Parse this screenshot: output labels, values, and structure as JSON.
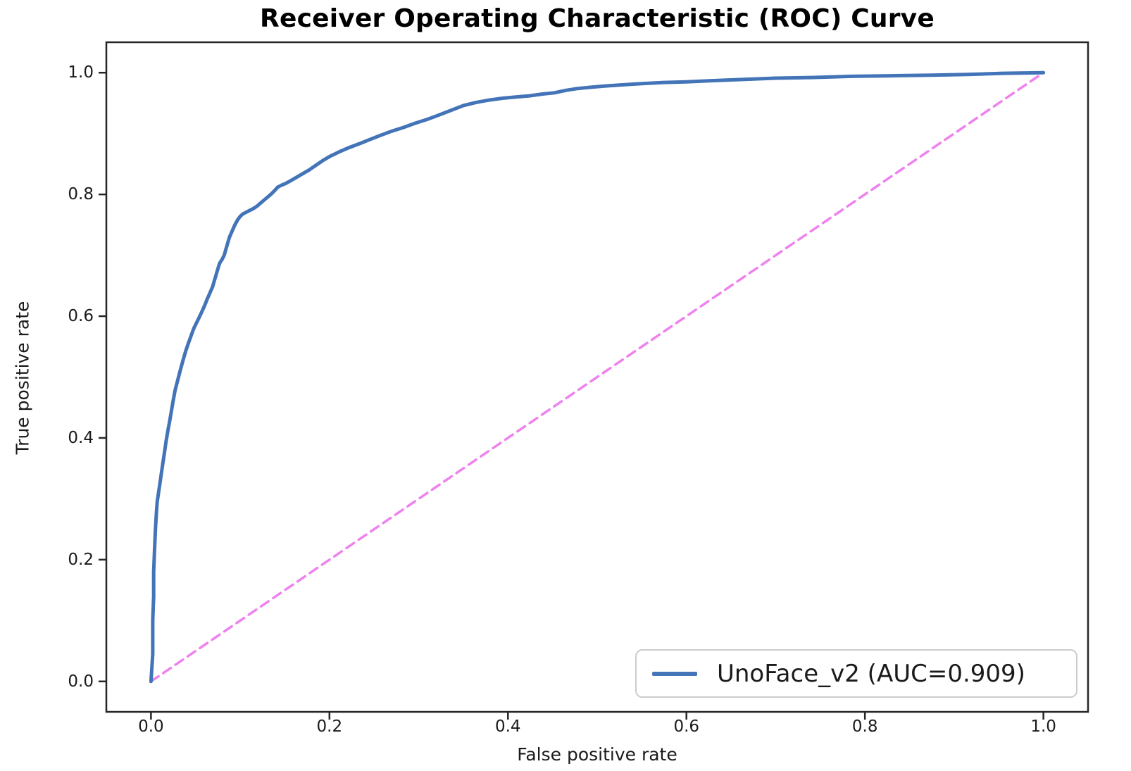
{
  "figure": {
    "title": "Receiver Operating Characteristic (ROC) Curve",
    "x_axis_label": "False positive rate",
    "y_axis_label": "True positive rate"
  },
  "legend": {
    "label": "UnoFace_v2 (AUC=0.909)",
    "position": "lower right"
  },
  "colors": {
    "roc_line": "#4374b8",
    "chance_line": "#ee82ee",
    "axis": "#262626",
    "text": "#1a1a1a",
    "legend_border": "#cccccc",
    "title": "#000000"
  },
  "chart_data": {
    "type": "line",
    "title": "Receiver Operating Characteristic (ROC) Curve",
    "xlabel": "False positive rate",
    "ylabel": "True positive rate",
    "xlim": [
      -0.05,
      1.05
    ],
    "ylim": [
      -0.05,
      1.05
    ],
    "x_ticks": [
      0.0,
      0.2,
      0.4,
      0.6,
      0.8,
      1.0
    ],
    "y_ticks": [
      0.0,
      0.2,
      0.4,
      0.6,
      0.8,
      1.0
    ],
    "grid": false,
    "legend_position": "lower right",
    "series": [
      {
        "name": "UnoFace_v2 (AUC=0.909)",
        "auc": 0.909,
        "style": "solid",
        "color": "#4374b8",
        "points": [
          [
            0.0,
            0.0
          ],
          [
            0.002,
            0.045
          ],
          [
            0.002,
            0.1
          ],
          [
            0.003,
            0.14
          ],
          [
            0.003,
            0.18
          ],
          [
            0.004,
            0.215
          ],
          [
            0.005,
            0.25
          ],
          [
            0.006,
            0.275
          ],
          [
            0.007,
            0.295
          ],
          [
            0.009,
            0.315
          ],
          [
            0.011,
            0.335
          ],
          [
            0.013,
            0.355
          ],
          [
            0.015,
            0.375
          ],
          [
            0.017,
            0.395
          ],
          [
            0.019,
            0.412
          ],
          [
            0.021,
            0.428
          ],
          [
            0.023,
            0.445
          ],
          [
            0.025,
            0.462
          ],
          [
            0.027,
            0.478
          ],
          [
            0.03,
            0.495
          ],
          [
            0.033,
            0.512
          ],
          [
            0.036,
            0.528
          ],
          [
            0.039,
            0.543
          ],
          [
            0.042,
            0.556
          ],
          [
            0.045,
            0.568
          ],
          [
            0.048,
            0.58
          ],
          [
            0.052,
            0.592
          ],
          [
            0.056,
            0.604
          ],
          [
            0.06,
            0.617
          ],
          [
            0.063,
            0.628
          ],
          [
            0.066,
            0.638
          ],
          [
            0.069,
            0.648
          ],
          [
            0.071,
            0.658
          ],
          [
            0.073,
            0.668
          ],
          [
            0.075,
            0.678
          ],
          [
            0.077,
            0.687
          ],
          [
            0.08,
            0.694
          ],
          [
            0.082,
            0.7
          ],
          [
            0.084,
            0.71
          ],
          [
            0.086,
            0.72
          ],
          [
            0.088,
            0.73
          ],
          [
            0.091,
            0.74
          ],
          [
            0.094,
            0.75
          ],
          [
            0.097,
            0.758
          ],
          [
            0.1,
            0.764
          ],
          [
            0.103,
            0.768
          ],
          [
            0.107,
            0.771
          ],
          [
            0.111,
            0.774
          ],
          [
            0.115,
            0.777
          ],
          [
            0.119,
            0.781
          ],
          [
            0.123,
            0.786
          ],
          [
            0.127,
            0.791
          ],
          [
            0.131,
            0.796
          ],
          [
            0.135,
            0.801
          ],
          [
            0.139,
            0.807
          ],
          [
            0.142,
            0.812
          ],
          [
            0.146,
            0.815
          ],
          [
            0.151,
            0.818
          ],
          [
            0.157,
            0.823
          ],
          [
            0.163,
            0.828
          ],
          [
            0.17,
            0.834
          ],
          [
            0.177,
            0.84
          ],
          [
            0.185,
            0.848
          ],
          [
            0.193,
            0.856
          ],
          [
            0.201,
            0.863
          ],
          [
            0.211,
            0.87
          ],
          [
            0.222,
            0.877
          ],
          [
            0.233,
            0.883
          ],
          [
            0.245,
            0.89
          ],
          [
            0.257,
            0.897
          ],
          [
            0.27,
            0.904
          ],
          [
            0.283,
            0.91
          ],
          [
            0.296,
            0.917
          ],
          [
            0.309,
            0.923
          ],
          [
            0.322,
            0.93
          ],
          [
            0.336,
            0.938
          ],
          [
            0.35,
            0.946
          ],
          [
            0.364,
            0.951
          ],
          [
            0.379,
            0.955
          ],
          [
            0.394,
            0.958
          ],
          [
            0.409,
            0.96
          ],
          [
            0.424,
            0.962
          ],
          [
            0.439,
            0.965
          ],
          [
            0.452,
            0.967
          ],
          [
            0.465,
            0.971
          ],
          [
            0.478,
            0.974
          ],
          [
            0.492,
            0.976
          ],
          [
            0.508,
            0.978
          ],
          [
            0.528,
            0.98
          ],
          [
            0.55,
            0.982
          ],
          [
            0.575,
            0.984
          ],
          [
            0.6,
            0.985
          ],
          [
            0.63,
            0.987
          ],
          [
            0.665,
            0.989
          ],
          [
            0.7,
            0.991
          ],
          [
            0.74,
            0.992
          ],
          [
            0.785,
            0.994
          ],
          [
            0.83,
            0.995
          ],
          [
            0.875,
            0.996
          ],
          [
            0.915,
            0.997
          ],
          [
            0.955,
            0.999
          ],
          [
            1.0,
            1.0
          ]
        ]
      },
      {
        "name": "chance-diagonal",
        "style": "dashed",
        "color": "#ee82ee",
        "points": [
          [
            0.0,
            0.0
          ],
          [
            1.0,
            1.0
          ]
        ]
      }
    ]
  }
}
